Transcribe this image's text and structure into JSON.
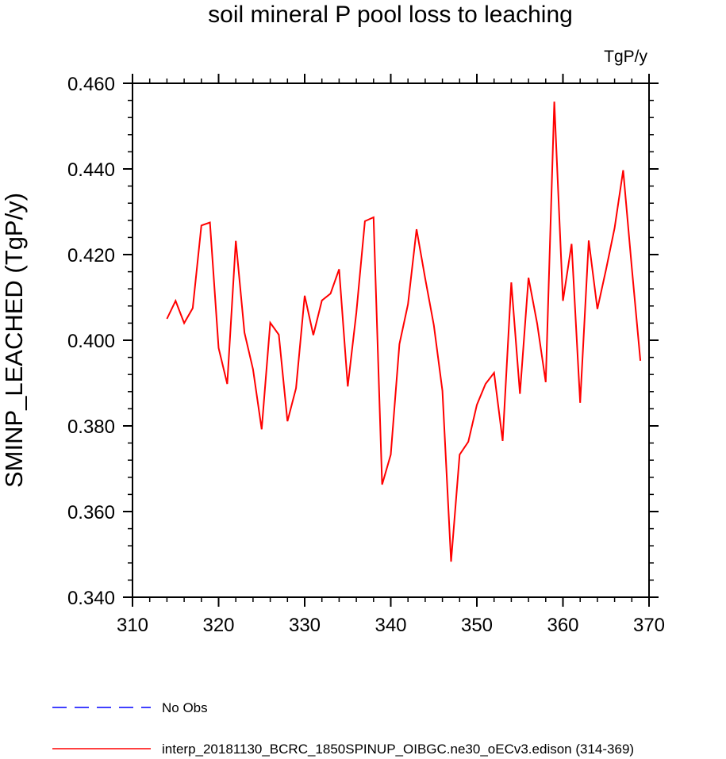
{
  "chart_data": {
    "type": "line",
    "title": "soil mineral P pool loss to leaching",
    "units": "TgP/y",
    "xlabel": "",
    "ylabel": "SMINP_LEACHED  (TgP/y)",
    "xlim": [
      310,
      370
    ],
    "ylim": [
      0.34,
      0.46
    ],
    "xticks": [
      310,
      320,
      330,
      340,
      350,
      360,
      370
    ],
    "xtick_labels": [
      "310",
      "320",
      "330",
      "340",
      "350",
      "360",
      "370"
    ],
    "yticks": [
      0.34,
      0.36,
      0.38,
      0.4,
      0.42,
      0.44,
      0.46
    ],
    "ytick_labels": [
      "0.340",
      "0.360",
      "0.380",
      "0.400",
      "0.420",
      "0.440",
      "0.460"
    ],
    "grid": false,
    "legend_position": "bottom",
    "series": [
      {
        "name": "No Obs",
        "color": "#0000ff",
        "dash": "dashed",
        "x": [],
        "values": []
      },
      {
        "name": "interp_20181130_BCRC_1850SPINUP_OIBGC.ne30_oECv3.edison (314-369)",
        "color": "#ff0000",
        "dash": "solid",
        "x": [
          314,
          315,
          316,
          317,
          318,
          319,
          320,
          321,
          322,
          323,
          324,
          325,
          326,
          327,
          328,
          329,
          330,
          331,
          332,
          333,
          334,
          335,
          336,
          337,
          338,
          339,
          340,
          341,
          342,
          343,
          344,
          345,
          346,
          347,
          348,
          349,
          350,
          351,
          352,
          353,
          354,
          355,
          356,
          357,
          358,
          359,
          360,
          361,
          362,
          363,
          364,
          365,
          366,
          367,
          368,
          369
        ],
        "values": [
          0.405,
          0.4092,
          0.404,
          0.4075,
          0.4268,
          0.4275,
          0.3982,
          0.3898,
          0.4232,
          0.4018,
          0.3932,
          0.3792,
          0.4041,
          0.4013,
          0.3811,
          0.3888,
          0.4104,
          0.4012,
          0.4093,
          0.4109,
          0.4166,
          0.3892,
          0.4064,
          0.4278,
          0.4287,
          0.3663,
          0.3733,
          0.3991,
          0.4084,
          0.4259,
          0.4144,
          0.4035,
          0.3882,
          0.3483,
          0.3733,
          0.3763,
          0.3849,
          0.3898,
          0.3924,
          0.3765,
          0.4135,
          0.3875,
          0.4146,
          0.4039,
          0.3902,
          0.4557,
          0.4092,
          0.4225,
          0.3854,
          0.4233,
          0.4073,
          0.4165,
          0.4262,
          0.4397,
          0.4169,
          0.3952
        ]
      }
    ]
  }
}
